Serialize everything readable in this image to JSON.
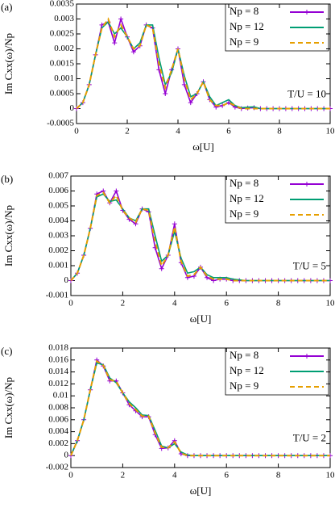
{
  "chart_data": [
    {
      "type": "line",
      "label": "(a)",
      "annotation": "T/U = 10",
      "xlabel": "ω[U]",
      "ylabel": "Im Cxx(ω)/Np",
      "x": [
        0,
        0.25,
        0.5,
        0.75,
        1,
        1.25,
        1.5,
        1.75,
        2,
        2.25,
        2.5,
        2.75,
        3,
        3.25,
        3.5,
        3.75,
        4,
        4.25,
        4.5,
        4.75,
        5,
        5.25,
        5.5,
        5.75,
        6,
        6.25,
        6.5,
        6.75,
        7,
        7.25,
        7.5,
        7.75,
        8,
        8.25,
        8.5,
        8.75,
        9,
        9.25,
        9.5,
        9.75,
        10
      ],
      "xlim": [
        0,
        10
      ],
      "xticks": [
        0,
        2,
        4,
        6,
        8,
        10
      ],
      "ylim": [
        -0.0005,
        0.0035
      ],
      "yticks": [
        -0.0005,
        0,
        0.0005,
        0.001,
        0.0015,
        0.002,
        0.0025,
        0.003,
        0.0035
      ],
      "series": [
        {
          "name": "Np = 8",
          "color": "#9400d3",
          "marker": "+",
          "values": [
            0,
            0.0002,
            0.0008,
            0.0018,
            0.0028,
            0.0029,
            0.0022,
            0.003,
            0.0024,
            0.0019,
            0.0021,
            0.0028,
            0.0027,
            0.0013,
            0.0005,
            0.0013,
            0.002,
            0.0008,
            0.0002,
            0.0005,
            0.0009,
            0.0003,
            5e-05,
            0.0001,
            0.0002,
            5e-05,
            0,
            2e-05,
            3e-05,
            0,
            0,
            0,
            0,
            0,
            0,
            0,
            0,
            0,
            0,
            0,
            0
          ]
        },
        {
          "name": "Np = 12",
          "color": "#009e73",
          "values": [
            0,
            0.0002,
            0.0008,
            0.0018,
            0.0027,
            0.0029,
            0.0025,
            0.0027,
            0.0024,
            0.002,
            0.0022,
            0.0028,
            0.0028,
            0.0017,
            0.0008,
            0.0012,
            0.002,
            0.0011,
            0.0004,
            0.0005,
            0.0009,
            0.0004,
            0.0001,
            0.0002,
            0.0003,
            0.0001,
            3e-05,
            5e-05,
            6e-05,
            0,
            0,
            0,
            0,
            0,
            0,
            0,
            0,
            0,
            0,
            0,
            0
          ]
        },
        {
          "name": "Np = 9",
          "color": "#e69f00",
          "dash": true,
          "values": [
            0,
            0.0002,
            0.0008,
            0.0018,
            0.0027,
            0.003,
            0.0024,
            0.0028,
            0.0024,
            0.002,
            0.0021,
            0.0028,
            0.0027,
            0.0015,
            0.0007,
            0.0013,
            0.002,
            0.001,
            0.0003,
            0.0005,
            0.0009,
            0.0003,
            0.0001,
            0.0001,
            0.0002,
            0.0001,
            0,
            0,
            0,
            0,
            0,
            0,
            0,
            0,
            0,
            0,
            0,
            0,
            0,
            0,
            0
          ]
        }
      ]
    },
    {
      "type": "line",
      "label": "(b)",
      "annotation": "T/U = 5",
      "xlabel": "ω[U]",
      "ylabel": "Im Cxx(ω)/Np",
      "x": [
        0,
        0.25,
        0.5,
        0.75,
        1,
        1.25,
        1.5,
        1.75,
        2,
        2.25,
        2.5,
        2.75,
        3,
        3.25,
        3.5,
        3.75,
        4,
        4.25,
        4.5,
        4.75,
        5,
        5.25,
        5.5,
        5.75,
        6,
        6.25,
        6.5,
        6.75,
        7,
        7.25,
        7.5,
        7.75,
        8,
        8.25,
        8.5,
        8.75,
        9,
        9.25,
        9.5,
        9.75,
        10
      ],
      "xlim": [
        0,
        10
      ],
      "xticks": [
        0,
        2,
        4,
        6,
        8,
        10
      ],
      "ylim": [
        -0.001,
        0.007
      ],
      "yticks": [
        -0.001,
        0,
        0.001,
        0.002,
        0.003,
        0.004,
        0.005,
        0.006,
        0.007
      ],
      "series": [
        {
          "name": "Np = 8",
          "color": "#9400d3",
          "marker": "+",
          "values": [
            0,
            0.0005,
            0.0017,
            0.0035,
            0.0058,
            0.006,
            0.0052,
            0.006,
            0.0047,
            0.0041,
            0.0038,
            0.0048,
            0.0046,
            0.0022,
            0.0008,
            0.0017,
            0.0038,
            0.0012,
            0.0002,
            0.0003,
            0.0009,
            0.0002,
            0,
            0.0001,
            0.0001,
            0,
            0,
            0,
            0,
            0,
            0,
            0,
            0,
            0,
            0,
            0,
            0,
            0,
            0,
            0,
            0
          ]
        },
        {
          "name": "Np = 12",
          "color": "#009e73",
          "values": [
            0,
            0.0005,
            0.0017,
            0.0035,
            0.0056,
            0.0058,
            0.0053,
            0.0054,
            0.0048,
            0.0042,
            0.004,
            0.0048,
            0.0048,
            0.003,
            0.0013,
            0.0017,
            0.0033,
            0.0015,
            0.0005,
            0.0006,
            0.0009,
            0.0004,
            0.0002,
            0.0002,
            0.0002,
            0.0001,
            5e-05,
            0,
            0,
            0,
            0,
            0,
            0,
            0,
            0,
            0,
            0,
            0,
            0,
            0,
            0
          ]
        },
        {
          "name": "Np = 9",
          "color": "#e69f00",
          "dash": true,
          "values": [
            0,
            0.0005,
            0.0017,
            0.0035,
            0.0057,
            0.0059,
            0.0052,
            0.0057,
            0.0047,
            0.0042,
            0.0039,
            0.0048,
            0.0047,
            0.0026,
            0.001,
            0.0017,
            0.0036,
            0.0013,
            0.0003,
            0.0004,
            0.0009,
            0.0003,
            0.0001,
            0.0001,
            0.0001,
            0,
            0,
            0,
            0,
            0,
            0,
            0,
            0,
            0,
            0,
            0,
            0,
            0,
            0,
            0,
            0
          ]
        }
      ]
    },
    {
      "type": "line",
      "label": "(c)",
      "annotation": "T/U = 2",
      "xlabel": "ω[U]",
      "ylabel": "Im Cxx(ω)/Np",
      "x": [
        0,
        0.25,
        0.5,
        0.75,
        1,
        1.25,
        1.5,
        1.75,
        2,
        2.25,
        2.5,
        2.75,
        3,
        3.25,
        3.5,
        3.75,
        4,
        4.25,
        4.5,
        4.75,
        5,
        5.25,
        5.5,
        5.75,
        6,
        6.25,
        6.5,
        6.75,
        7,
        7.25,
        7.5,
        7.75,
        8,
        8.25,
        8.5,
        8.75,
        9,
        9.25,
        9.5,
        9.75,
        10
      ],
      "xlim": [
        0,
        10
      ],
      "xticks": [
        0,
        2,
        4,
        6,
        8,
        10
      ],
      "ylim": [
        -0.002,
        0.018
      ],
      "yticks": [
        -0.002,
        0,
        0.002,
        0.004,
        0.006,
        0.008,
        0.01,
        0.012,
        0.014,
        0.016,
        0.018
      ],
      "series": [
        {
          "name": "Np = 8",
          "color": "#9400d3",
          "marker": "+",
          "values": [
            0,
            0.0025,
            0.006,
            0.011,
            0.016,
            0.015,
            0.0125,
            0.0125,
            0.0105,
            0.0085,
            0.0075,
            0.0065,
            0.0065,
            0.0035,
            0.0012,
            0.0013,
            0.0025,
            0.0003,
            0,
            0,
            0,
            0,
            0,
            0,
            0,
            0,
            0,
            0,
            0,
            0,
            0,
            0,
            0,
            0,
            0,
            0,
            0,
            0,
            0,
            0,
            0
          ]
        },
        {
          "name": "Np = 12",
          "color": "#009e73",
          "values": [
            0,
            0.0025,
            0.006,
            0.011,
            0.0155,
            0.0152,
            0.013,
            0.0122,
            0.0105,
            0.009,
            0.008,
            0.0068,
            0.0067,
            0.0042,
            0.0016,
            0.0013,
            0.002,
            0.0006,
            0.0001,
            0,
            0,
            0,
            0,
            0,
            0,
            0,
            0,
            0,
            0,
            0,
            0,
            0,
            0,
            0,
            0,
            0,
            0,
            0,
            0,
            0,
            0
          ]
        },
        {
          "name": "Np = 9",
          "color": "#e69f00",
          "dash": true,
          "values": [
            0,
            0.0025,
            0.006,
            0.011,
            0.0158,
            0.0151,
            0.0127,
            0.0124,
            0.0105,
            0.0087,
            0.0077,
            0.0066,
            0.0066,
            0.0038,
            0.0014,
            0.0013,
            0.0023,
            0.0004,
            0,
            0,
            0,
            0,
            0,
            0,
            0,
            0,
            0,
            0,
            0,
            0,
            0,
            0,
            0,
            0,
            0,
            0,
            0,
            0,
            0,
            0,
            0
          ]
        }
      ]
    }
  ]
}
